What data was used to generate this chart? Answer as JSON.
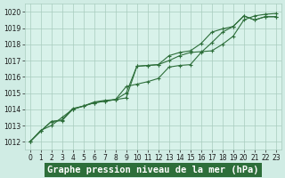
{
  "background_color": "#d0ece4",
  "plot_bg_color": "#d8f2ea",
  "grid_color": "#a8ccbe",
  "line_color": "#2d6e3a",
  "title": "Graphe pression niveau de la mer (hPa)",
  "ylim": [
    1011.5,
    1020.5
  ],
  "xlim": [
    -0.5,
    23.5
  ],
  "yticks": [
    1012,
    1013,
    1014,
    1015,
    1016,
    1017,
    1018,
    1019,
    1020
  ],
  "xticks": [
    0,
    1,
    2,
    3,
    4,
    5,
    6,
    7,
    8,
    9,
    10,
    11,
    12,
    13,
    14,
    15,
    16,
    17,
    18,
    19,
    20,
    21,
    22,
    23
  ],
  "series1_x": [
    0,
    1,
    2,
    3,
    4,
    5,
    6,
    7,
    8,
    9,
    10,
    11,
    12,
    13,
    14,
    15,
    16,
    17,
    18,
    19,
    20,
    21,
    22,
    23
  ],
  "series1_y": [
    1012.0,
    1012.7,
    1013.0,
    1013.5,
    1014.0,
    1014.2,
    1014.4,
    1014.5,
    1014.6,
    1014.7,
    1016.65,
    1016.7,
    1016.75,
    1017.3,
    1017.5,
    1017.6,
    1018.05,
    1018.75,
    1018.95,
    1019.1,
    1019.75,
    1019.5,
    1019.7,
    1019.7
  ],
  "series2_x": [
    0,
    1,
    2,
    3,
    4,
    5,
    6,
    7,
    8,
    9,
    10,
    11,
    12,
    13,
    14,
    15,
    16,
    17,
    18,
    19,
    20,
    21,
    22,
    23
  ],
  "series2_y": [
    1012.0,
    1012.65,
    1013.25,
    1013.35,
    1014.05,
    1014.2,
    1014.45,
    1014.55,
    1014.6,
    1015.4,
    1015.55,
    1015.7,
    1015.9,
    1016.6,
    1016.7,
    1016.75,
    1017.5,
    1018.1,
    1018.75,
    1019.1,
    1019.75,
    1019.5,
    1019.7,
    1019.7
  ],
  "series3_x": [
    0,
    1,
    2,
    3,
    4,
    5,
    6,
    7,
    8,
    9,
    10,
    11,
    12,
    13,
    14,
    15,
    16,
    17,
    18,
    19,
    20,
    21,
    22,
    23
  ],
  "series3_y": [
    1012.0,
    1012.65,
    1013.25,
    1013.3,
    1014.0,
    1014.2,
    1014.4,
    1014.5,
    1014.6,
    1015.0,
    1016.65,
    1016.7,
    1016.75,
    1017.0,
    1017.3,
    1017.5,
    1017.55,
    1017.6,
    1018.0,
    1018.5,
    1019.5,
    1019.75,
    1019.85,
    1019.9
  ],
  "title_fontsize": 7.5,
  "tick_fontsize": 5.5,
  "title_bg_color": "#2d6e3a",
  "title_text_color": "#ffffff"
}
